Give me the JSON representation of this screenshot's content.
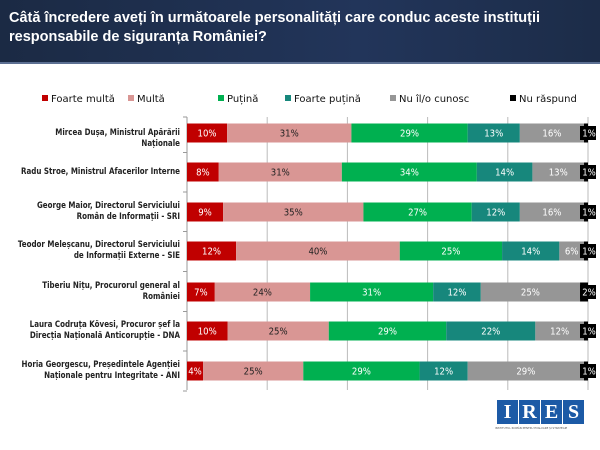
{
  "header": {
    "title": "Câtă încredere aveți în următoarele personalități care conduc aceste instituții responsabile de siguranța României?"
  },
  "chart_data": {
    "type": "bar",
    "orientation": "horizontal",
    "stacked": true,
    "xlim": [
      0,
      100
    ],
    "grid": true,
    "legend_position": "top",
    "categories": [
      "Mircea Dușa, Ministrul Apărării Naționale",
      "Radu Stroe, Ministrul Afacerilor Interne",
      "George Maior, Directorul Serviciului Român de Informații - SRI",
      "Teodor Meleșcanu, Directorul Serviciului de Informații Externe - SIE",
      "Tiberiu Nițu, Procurorul general al României",
      "Laura Codruța Kövesi, Procuror șef la Direcția Națională Anticorupție - DNA",
      "Horia Georgescu, Președintele Agenției Naționale pentru Integritate - ANI"
    ],
    "series": [
      {
        "name": "Foarte multă",
        "color": "#c00000",
        "values": [
          10,
          8,
          9,
          12,
          7,
          10,
          4
        ]
      },
      {
        "name": "Multă",
        "color": "#d99694",
        "values": [
          31,
          31,
          35,
          40,
          24,
          25,
          25
        ]
      },
      {
        "name": "Puțină",
        "color": "#00b050",
        "values": [
          29,
          34,
          27,
          25,
          31,
          29,
          29
        ]
      },
      {
        "name": "Foarte puțină",
        "color": "#17877c",
        "values": [
          13,
          14,
          12,
          14,
          12,
          22,
          12
        ]
      },
      {
        "name": "Nu îl/o cunosc",
        "color": "#969696",
        "values": [
          16,
          13,
          16,
          6,
          25,
          12,
          29
        ]
      },
      {
        "name": "Nu răspund",
        "color": "#000000",
        "values": [
          1,
          1,
          1,
          1,
          2,
          1,
          1
        ]
      }
    ],
    "value_suffix": "%"
  },
  "logo": {
    "text": "IRES",
    "subtitle": "INSTITUTUL ROMÂN PENTRU EVALUARE ȘI STRATEGIE"
  }
}
